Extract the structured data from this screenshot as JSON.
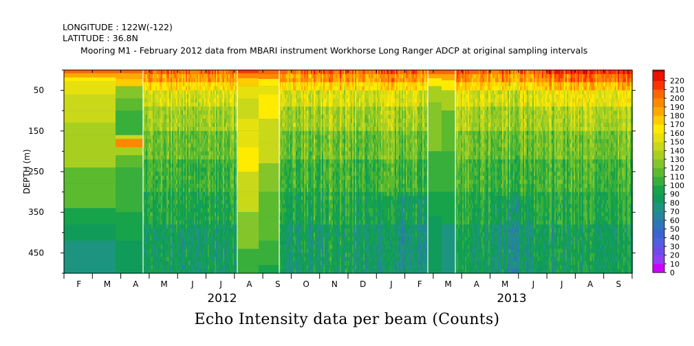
{
  "header": {
    "longitude": "LONGITUDE : 122W(-122)",
    "latitude": "LATITUDE : 36.8N",
    "title": "Mooring M1 - February 2012 data from MBARI instrument Workhorse Long Ranger ADCP at original sampling intervals"
  },
  "footer_title": "Echo Intensity data per beam (Counts)",
  "chart_data": {
    "type": "heatmap",
    "title": "Mooring M1 - February 2012 data from MBARI instrument Workhorse Long Ranger ADCP at original sampling intervals",
    "xlabel": "",
    "ylabel": "DEPTH (m)",
    "x_month_labels": [
      "F",
      "M",
      "A",
      "M",
      "J",
      "J",
      "A",
      "S",
      "O",
      "N",
      "D",
      "J",
      "F",
      "M",
      "A",
      "M",
      "J",
      "J",
      "A",
      "S"
    ],
    "year_labels": [
      "2012",
      "2013"
    ],
    "ylim": [
      500,
      0
    ],
    "y_ticks": [
      50,
      150,
      250,
      350,
      450
    ],
    "colorbar": {
      "min": 0,
      "max": 220,
      "step": 10,
      "labels": [
        "0",
        "10",
        "20",
        "30",
        "40",
        "50",
        "60",
        "70",
        "80",
        "90",
        "100",
        "110",
        "120",
        "130",
        "140",
        "150",
        "160",
        "170",
        "180",
        "190",
        "200",
        "210",
        "220"
      ],
      "colors": [
        "#cc00ff",
        "#8f3ff5",
        "#6f4ae8",
        "#4f5fe0",
        "#3a64d0",
        "#2f73b8",
        "#26849e",
        "#1d947f",
        "#109b5a",
        "#16a34a",
        "#38ae3b",
        "#5cba2f",
        "#84c52a",
        "#a8cf20",
        "#cad81a",
        "#e6e10e",
        "#ffeb00",
        "#ffcc00",
        "#ffa800",
        "#ff8800",
        "#ff6600",
        "#ff3300",
        "#ee1100",
        "#c00000"
      ],
      "position": "right"
    },
    "grid": false
  }
}
